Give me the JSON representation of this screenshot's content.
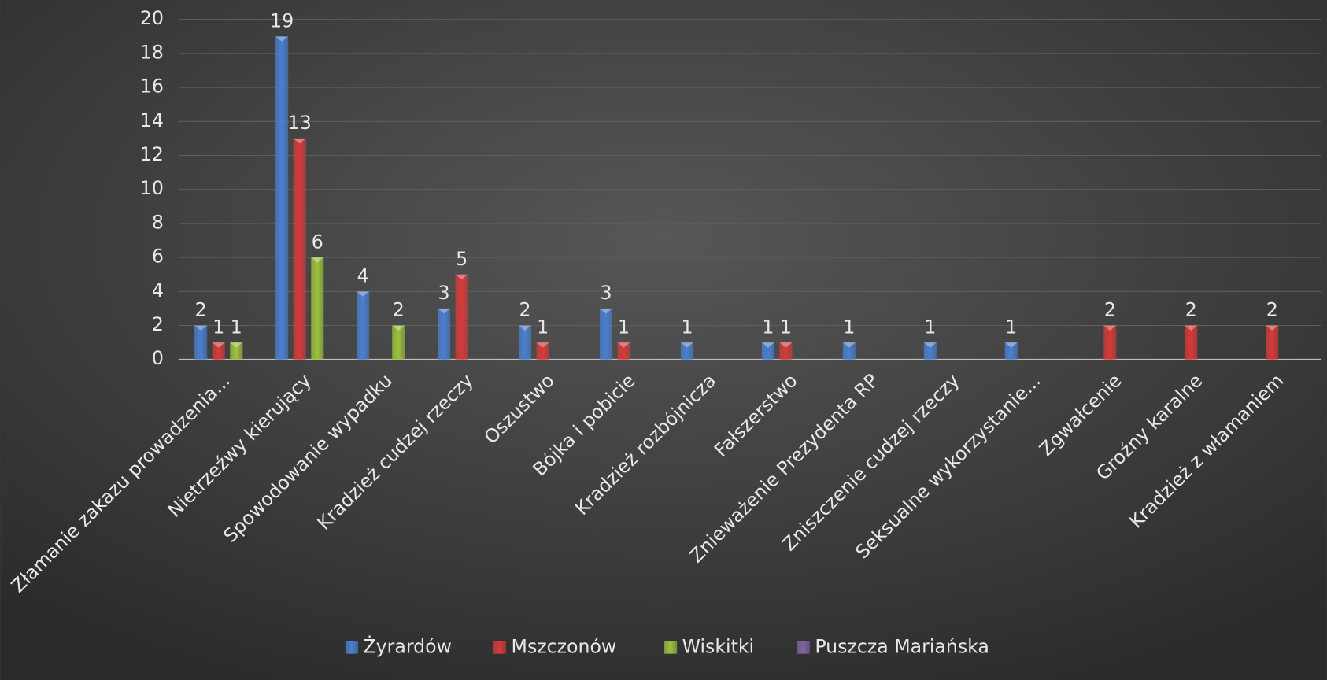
{
  "chart_data": {
    "type": "bar",
    "categories": [
      "Złamanie zakazu prowadzenia...",
      "Nietrzeźwy kierujący",
      "Spowodowanie wypadku",
      "Kradzież cudzej rzeczy",
      "Oszustwo",
      "Bójka i pobicie",
      "Kradzież rozbójnicza",
      "Fałszerstwo",
      "Znieważenie Prezydenta RP",
      "Zniszczenie cudzej rzeczy",
      "Seksualne wykorzystanie...",
      "Zgwałcenie",
      "Groźny karalne",
      "Kradzież z włamaniem"
    ],
    "series": [
      {
        "name": "Żyrardów",
        "color": "#4a7fd0",
        "values": [
          2,
          19,
          4,
          3,
          2,
          3,
          1,
          1,
          1,
          1,
          1,
          null,
          null,
          null
        ]
      },
      {
        "name": "Mszczonów",
        "color": "#d63a3a",
        "values": [
          1,
          13,
          null,
          5,
          1,
          1,
          null,
          1,
          null,
          null,
          null,
          2,
          2,
          2
        ]
      },
      {
        "name": "Wiskitki",
        "color": "#9bc23c",
        "values": [
          1,
          6,
          2,
          null,
          null,
          null,
          null,
          null,
          null,
          null,
          null,
          null,
          null,
          null
        ]
      },
      {
        "name": "Puszcza Mariańska",
        "color": "#8064a2",
        "values": [
          null,
          null,
          null,
          null,
          null,
          null,
          null,
          null,
          null,
          null,
          null,
          null,
          null,
          null
        ]
      }
    ],
    "ylim": [
      0,
      20
    ],
    "yticks": [
      0,
      2,
      4,
      6,
      8,
      10,
      12,
      14,
      16,
      18,
      20
    ],
    "grid": true,
    "legend": "bottom"
  }
}
